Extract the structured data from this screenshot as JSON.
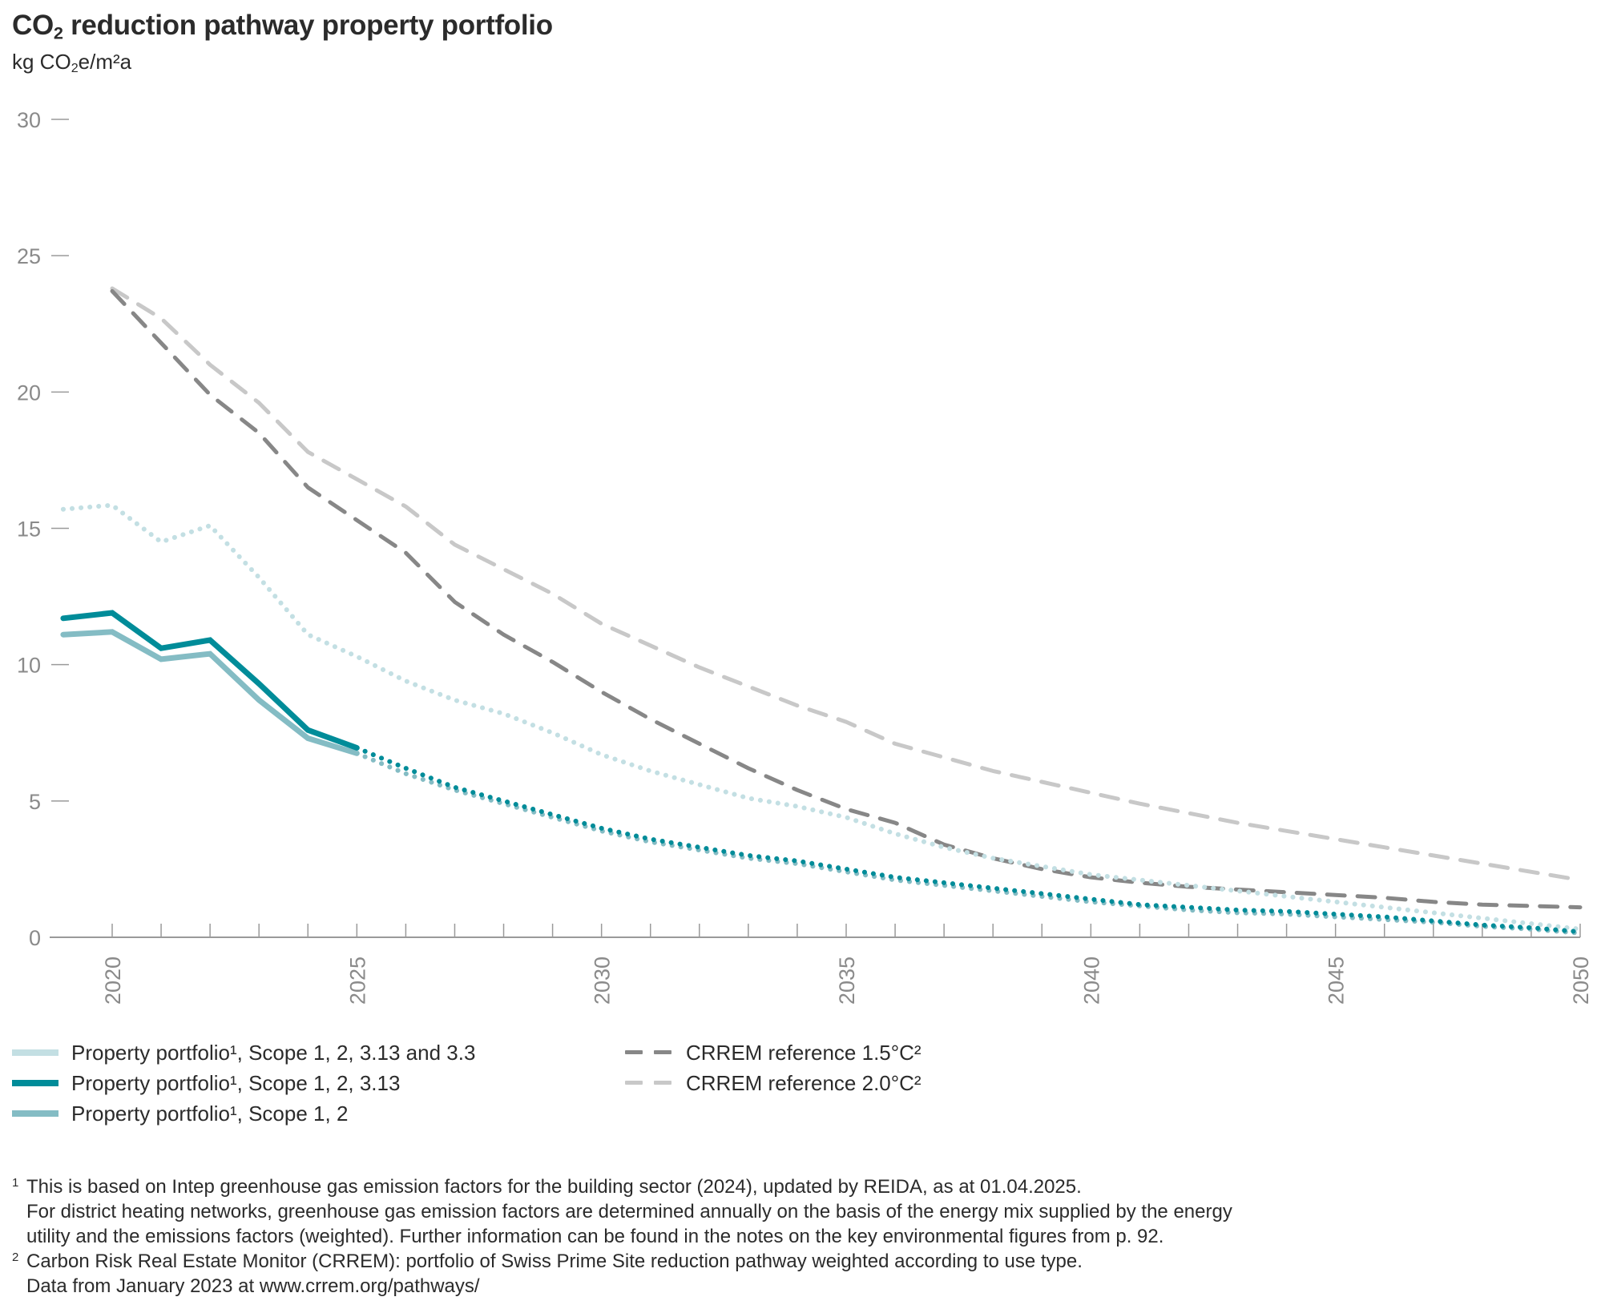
{
  "title": {
    "prefix": "CO",
    "sub": "2",
    "rest": " reduction pathway property portfolio"
  },
  "unit": {
    "prefix": "kg CO",
    "sub": "2",
    "rest": "e/m²a"
  },
  "chart_data": {
    "type": "line",
    "title": "CO2 reduction pathway property portfolio",
    "ylabel": "kg CO2e/m²a",
    "xlabel": "",
    "ylim": [
      0,
      30
    ],
    "xlim": [
      2019,
      2050
    ],
    "yticks": [
      "0",
      "5",
      "10",
      "15",
      "20",
      "25",
      "30"
    ],
    "ytick_values": [
      0,
      5,
      10,
      15,
      20,
      25,
      30
    ],
    "xticks": [
      "2020",
      "2025",
      "2030",
      "2035",
      "2040",
      "2045",
      "2050"
    ],
    "xtick_values": [
      2020,
      2025,
      2030,
      2035,
      2040,
      2045,
      2050
    ],
    "minor_xticks_every_year": true,
    "grid": false,
    "legend_position": "bottom",
    "series": [
      {
        "name": "Property portfolio¹, Scope 1, 2, 3.13 and 3.3",
        "color": "#c3dfe3",
        "style": "dotted",
        "x": [
          2019,
          2020,
          2021,
          2022,
          2023,
          2024,
          2025,
          2026,
          2027,
          2028,
          2029,
          2030,
          2031,
          2032,
          2033,
          2034,
          2035,
          2036,
          2037,
          2038,
          2039,
          2040,
          2041,
          2042,
          2043,
          2044,
          2045,
          2046,
          2047,
          2048,
          2049,
          2050
        ],
        "values": [
          15.7,
          15.85,
          14.5,
          15.1,
          13.2,
          11.1,
          10.3,
          9.4,
          8.7,
          8.2,
          7.5,
          6.7,
          6.1,
          5.6,
          5.1,
          4.8,
          4.4,
          3.8,
          3.3,
          2.9,
          2.6,
          2.3,
          2.1,
          1.9,
          1.7,
          1.5,
          1.3,
          1.1,
          0.9,
          0.7,
          0.5,
          0.3
        ]
      },
      {
        "name": "Property portfolio¹, Scope 1, 2, 3.13",
        "color": "#008c99",
        "style": "solid-then-dotted",
        "actual_until": 2025,
        "x": [
          2019,
          2020,
          2021,
          2022,
          2023,
          2024,
          2025,
          2026,
          2027,
          2028,
          2029,
          2030,
          2031,
          2032,
          2033,
          2034,
          2035,
          2036,
          2037,
          2038,
          2039,
          2040,
          2041,
          2042,
          2043,
          2044,
          2045,
          2046,
          2047,
          2048,
          2049,
          2050
        ],
        "values": [
          11.7,
          11.9,
          10.6,
          10.9,
          9.3,
          7.6,
          6.95,
          6.2,
          5.5,
          5.0,
          4.5,
          4.0,
          3.6,
          3.3,
          3.0,
          2.8,
          2.5,
          2.2,
          2.0,
          1.8,
          1.6,
          1.4,
          1.2,
          1.1,
          1.0,
          0.95,
          0.85,
          0.75,
          0.6,
          0.45,
          0.35,
          0.2
        ]
      },
      {
        "name": "Property portfolio¹, Scope 1, 2",
        "color": "#84bcc4",
        "style": "solid-then-dotted",
        "actual_until": 2025,
        "x": [
          2019,
          2020,
          2021,
          2022,
          2023,
          2024,
          2025,
          2026,
          2027,
          2028,
          2029,
          2030,
          2031,
          2032,
          2033,
          2034,
          2035,
          2036,
          2037,
          2038,
          2039,
          2040,
          2041,
          2042,
          2043,
          2044,
          2045,
          2046,
          2047,
          2048,
          2049,
          2050
        ],
        "values": [
          11.1,
          11.2,
          10.2,
          10.4,
          8.7,
          7.3,
          6.75,
          6.0,
          5.4,
          4.9,
          4.4,
          3.9,
          3.5,
          3.2,
          2.9,
          2.7,
          2.4,
          2.1,
          1.9,
          1.7,
          1.5,
          1.3,
          1.15,
          1.0,
          0.9,
          0.85,
          0.75,
          0.65,
          0.55,
          0.4,
          0.3,
          0.15
        ]
      },
      {
        "name": "CRREM reference 1.5°C²",
        "color": "#878787",
        "style": "dashed",
        "x": [
          2020,
          2021,
          2022,
          2023,
          2024,
          2025,
          2026,
          2027,
          2028,
          2029,
          2030,
          2031,
          2032,
          2033,
          2034,
          2035,
          2036,
          2037,
          2038,
          2039,
          2040,
          2041,
          2042,
          2043,
          2044,
          2045,
          2046,
          2047,
          2048,
          2049,
          2050
        ],
        "values": [
          23.7,
          21.8,
          19.9,
          18.5,
          16.5,
          15.3,
          14.1,
          12.3,
          11.1,
          10.1,
          9.0,
          8.0,
          7.1,
          6.2,
          5.4,
          4.7,
          4.2,
          3.4,
          2.9,
          2.5,
          2.2,
          2.0,
          1.85,
          1.75,
          1.65,
          1.55,
          1.45,
          1.3,
          1.2,
          1.15,
          1.1
        ]
      },
      {
        "name": "CRREM reference 2.0°C²",
        "color": "#c8c8c8",
        "style": "dashed",
        "x": [
          2020,
          2021,
          2022,
          2023,
          2024,
          2025,
          2026,
          2027,
          2028,
          2029,
          2030,
          2031,
          2032,
          2033,
          2034,
          2035,
          2036,
          2037,
          2038,
          2039,
          2040,
          2041,
          2042,
          2043,
          2044,
          2045,
          2046,
          2047,
          2048,
          2049,
          2050
        ],
        "values": [
          23.8,
          22.7,
          21.0,
          19.6,
          17.8,
          16.8,
          15.8,
          14.4,
          13.5,
          12.6,
          11.5,
          10.7,
          9.9,
          9.2,
          8.5,
          7.9,
          7.1,
          6.6,
          6.1,
          5.7,
          5.3,
          4.9,
          4.55,
          4.2,
          3.9,
          3.6,
          3.3,
          3.0,
          2.7,
          2.4,
          2.1
        ]
      }
    ]
  },
  "legend": {
    "left": [
      {
        "label": "Property portfolio¹, Scope 1, 2, 3.13 and 3.3",
        "color": "#c3dfe3"
      },
      {
        "label": "Property portfolio¹, Scope 1, 2, 3.13",
        "color": "#008c99"
      },
      {
        "label": "Property portfolio¹, Scope 1, 2",
        "color": "#84bcc4"
      }
    ],
    "right": [
      {
        "label": "CRREM reference 1.5°C²",
        "color": "#878787"
      },
      {
        "label": "CRREM reference 2.0°C²",
        "color": "#c8c8c8"
      }
    ]
  },
  "footnotes": [
    {
      "mark": "1",
      "lines": [
        "This is based on Intep greenhouse gas emission factors for the building sector (2024), updated by REIDA, as at 01.04.2025.",
        "For district heating networks, greenhouse gas emission factors are determined annually on the basis of the energy mix supplied by the energy",
        "utility and the emissions factors (weighted). Further information can be found in the notes on the key environmental figures from p. 92."
      ]
    },
    {
      "mark": "2",
      "lines": [
        "Carbon Risk Real Estate Monitor (CRREM): portfolio of Swiss Prime Site reduction pathway weighted according to use type.",
        "Data from January 2023 at www.crrem.org/pathways/"
      ]
    }
  ]
}
